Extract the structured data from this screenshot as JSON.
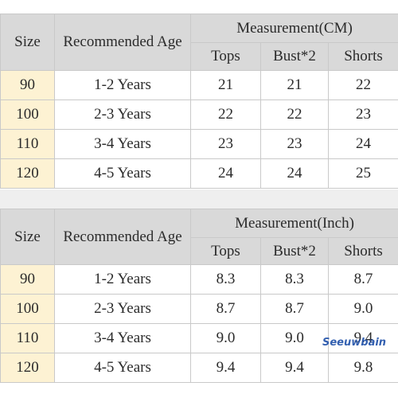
{
  "table_cm": {
    "headers": {
      "size": "Size",
      "age": "Recommended Age",
      "measurement": "Measurement(CM)",
      "tops": "Tops",
      "bust": "Bust*2",
      "shorts": "Shorts"
    },
    "rows": [
      {
        "size": "90",
        "age": "1-2 Years",
        "tops": "21",
        "bust": "21",
        "shorts": "22"
      },
      {
        "size": "100",
        "age": "2-3 Years",
        "tops": "22",
        "bust": "22",
        "shorts": "23"
      },
      {
        "size": "110",
        "age": "3-4 Years",
        "tops": "23",
        "bust": "23",
        "shorts": "24"
      },
      {
        "size": "120",
        "age": "4-5 Years",
        "tops": "24",
        "bust": "24",
        "shorts": "25"
      }
    ]
  },
  "table_inch": {
    "headers": {
      "size": "Size",
      "age": "Recommended Age",
      "measurement": "Measurement(Inch)",
      "tops": "Tops",
      "bust": "Bust*2",
      "shorts": "Shorts"
    },
    "rows": [
      {
        "size": "90",
        "age": "1-2 Years",
        "tops": "8.3",
        "bust": "8.3",
        "shorts": "8.7"
      },
      {
        "size": "100",
        "age": "2-3 Years",
        "tops": "8.7",
        "bust": "8.7",
        "shorts": "9.0"
      },
      {
        "size": "110",
        "age": "3-4 Years",
        "tops": "9.0",
        "bust": "9.0",
        "shorts": "9.4"
      },
      {
        "size": "120",
        "age": "4-5 Years",
        "tops": "9.4",
        "bust": "9.4",
        "shorts": "9.8"
      }
    ]
  },
  "watermark": "Seeuwbain",
  "colors": {
    "header_bg": "#d9d9d9",
    "size_cell_bg": "#fdf2d3",
    "gap_bg": "#efefef",
    "watermark": "#1e4fa8"
  }
}
